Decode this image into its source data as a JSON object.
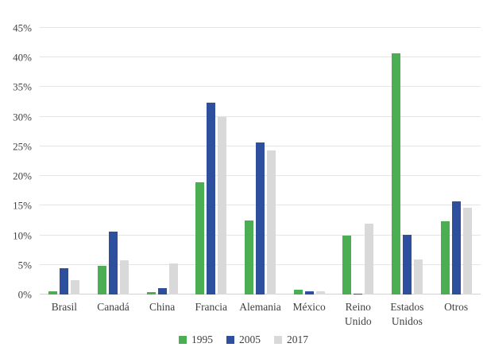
{
  "chart_data": {
    "type": "bar",
    "title": "",
    "categories": [
      "Brasil",
      "Canadá",
      "China",
      "Francia",
      "Alemania",
      "México",
      "Reino\nUnido",
      "Estados\nUnidos",
      "Otros"
    ],
    "series": [
      {
        "name": "1995",
        "color": "#4cae52",
        "values": [
          0.6,
          4.8,
          0.4,
          19.0,
          12.5,
          0.8,
          9.9,
          40.7,
          12.3
        ]
      },
      {
        "name": "2005",
        "color": "#2e4e9e",
        "values": [
          4.4,
          10.6,
          1.1,
          32.4,
          25.7,
          0.6,
          0.2,
          10.1,
          15.7
        ]
      },
      {
        "name": "2017",
        "color": "#d9d9d9",
        "values": [
          2.4,
          5.8,
          5.2,
          29.9,
          24.3,
          0.5,
          12.0,
          5.9,
          14.7
        ]
      }
    ],
    "yticks": [
      "0%",
      "5%",
      "10%",
      "15%",
      "20%",
      "25%",
      "30%",
      "35%",
      "40%",
      "45%"
    ],
    "ytick_values": [
      0,
      5,
      10,
      15,
      20,
      25,
      30,
      35,
      40,
      45
    ],
    "ylim": [
      0,
      45
    ],
    "xlabel": "",
    "ylabel": "",
    "grid": true,
    "legend_position": "bottom"
  },
  "colors": {
    "background": "#ffffff",
    "text": "#3f3f3f",
    "gridline": "#e4e4e4",
    "axis_line": "#d2d2d2"
  }
}
